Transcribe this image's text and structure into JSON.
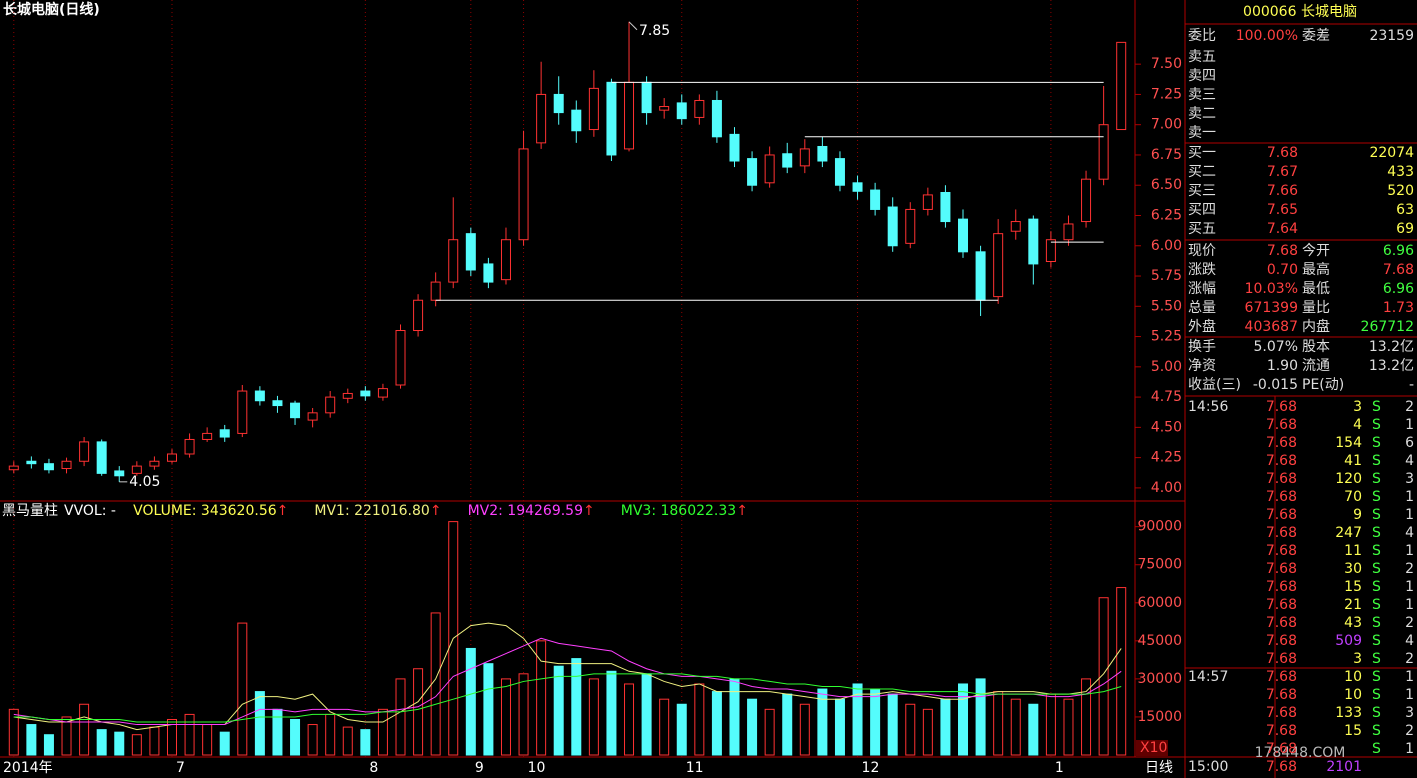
{
  "chart_data": [
    {
      "type": "candlestick",
      "title": "长城电脑(日线)",
      "period": "日线",
      "categories": [
        "2014年",
        null,
        null,
        null,
        null,
        null,
        null,
        null,
        null,
        "7",
        null,
        null,
        null,
        null,
        null,
        null,
        null,
        null,
        null,
        null,
        "8",
        null,
        null,
        null,
        null,
        null,
        "9",
        null,
        null,
        "10",
        null,
        null,
        null,
        null,
        null,
        null,
        null,
        null,
        "11",
        null,
        null,
        null,
        null,
        null,
        null,
        null,
        null,
        null,
        "12",
        null,
        null,
        null,
        null,
        null,
        null,
        null,
        null,
        null,
        null,
        "1",
        null,
        null,
        null,
        null
      ],
      "open": [
        4.15,
        4.22,
        4.2,
        4.16,
        4.22,
        4.38,
        4.14,
        4.12,
        4.18,
        4.22,
        4.28,
        4.4,
        4.48,
        4.45,
        4.8,
        4.72,
        4.7,
        4.56,
        4.62,
        4.74,
        4.8,
        4.75,
        4.85,
        5.3,
        5.55,
        5.7,
        6.1,
        5.85,
        5.72,
        6.05,
        6.85,
        7.25,
        7.12,
        6.96,
        7.35,
        6.8,
        7.35,
        7.12,
        7.18,
        7.06,
        7.2,
        6.92,
        6.72,
        6.52,
        6.76,
        6.66,
        6.82,
        6.72,
        6.52,
        6.46,
        6.32,
        6.02,
        6.3,
        6.44,
        6.22,
        5.95,
        5.58,
        6.12,
        6.22,
        5.87,
        6.05,
        6.2,
        6.55,
        6.96
      ],
      "high": [
        4.22,
        4.26,
        4.24,
        4.25,
        4.42,
        4.4,
        4.18,
        4.22,
        4.26,
        4.32,
        4.45,
        4.5,
        4.52,
        4.85,
        4.84,
        4.76,
        4.72,
        4.66,
        4.8,
        4.82,
        4.84,
        4.86,
        5.35,
        5.6,
        5.78,
        6.4,
        6.15,
        5.9,
        6.15,
        6.95,
        7.52,
        7.4,
        7.2,
        7.45,
        7.38,
        7.85,
        7.4,
        7.22,
        7.25,
        7.25,
        7.28,
        6.98,
        6.78,
        6.82,
        6.85,
        6.88,
        6.9,
        6.78,
        6.58,
        6.52,
        6.4,
        6.36,
        6.48,
        6.5,
        6.3,
        6.0,
        6.22,
        6.3,
        6.25,
        6.12,
        6.25,
        6.62,
        7.32,
        7.68
      ],
      "low": [
        4.12,
        4.16,
        4.12,
        4.12,
        4.18,
        4.1,
        4.05,
        4.1,
        4.15,
        4.2,
        4.25,
        4.38,
        4.38,
        4.42,
        4.68,
        4.62,
        4.52,
        4.5,
        4.58,
        4.7,
        4.72,
        4.72,
        4.82,
        5.25,
        5.5,
        5.65,
        5.75,
        5.65,
        5.68,
        6.0,
        6.8,
        7.0,
        6.85,
        6.9,
        6.7,
        6.78,
        7.0,
        7.05,
        7.0,
        7.0,
        6.85,
        6.65,
        6.45,
        6.48,
        6.6,
        6.6,
        6.65,
        6.45,
        6.38,
        6.25,
        5.95,
        5.98,
        6.25,
        6.15,
        5.9,
        5.42,
        5.52,
        6.05,
        5.68,
        5.82,
        6.0,
        6.15,
        6.5,
        6.96
      ],
      "close": [
        4.18,
        4.2,
        4.15,
        4.22,
        4.38,
        4.12,
        4.1,
        4.18,
        4.22,
        4.28,
        4.4,
        4.45,
        4.42,
        4.8,
        4.72,
        4.68,
        4.58,
        4.62,
        4.75,
        4.78,
        4.76,
        4.82,
        5.3,
        5.55,
        5.7,
        6.05,
        5.8,
        5.7,
        6.05,
        6.8,
        7.25,
        7.1,
        6.95,
        7.3,
        6.75,
        7.35,
        7.1,
        7.15,
        7.05,
        7.2,
        6.9,
        6.7,
        6.5,
        6.75,
        6.65,
        6.8,
        6.7,
        6.5,
        6.45,
        6.3,
        6.0,
        6.3,
        6.42,
        6.2,
        5.95,
        5.55,
        6.1,
        6.2,
        5.85,
        6.05,
        6.18,
        6.55,
        7.0,
        7.68
      ],
      "up_color": "#ff3232",
      "down_color": "#54fcfc",
      "ylim": [
        3.9,
        8.03
      ],
      "yticks": [
        {
          "value": 4,
          "label": "4.00"
        },
        {
          "value": 4.25,
          "label": "4.25"
        },
        {
          "value": 4.5,
          "label": "4.50"
        },
        {
          "value": 4.75,
          "label": "4.75"
        },
        {
          "value": 5,
          "label": "5.00"
        },
        {
          "value": 5.25,
          "label": "5.25"
        },
        {
          "value": 5.5,
          "label": "5.50"
        },
        {
          "value": 5.75,
          "label": "5.75"
        },
        {
          "value": 6,
          "label": "6.00"
        },
        {
          "value": 6.25,
          "label": "6.25"
        },
        {
          "value": 6.5,
          "label": "6.50"
        },
        {
          "value": 6.75,
          "label": "6.75"
        },
        {
          "value": 7,
          "label": "7.00"
        },
        {
          "value": 7.25,
          "label": "7.25"
        },
        {
          "value": 7.5,
          "label": "7.50"
        }
      ],
      "max_label": 7.85,
      "min_label": 4.05,
      "hlines": [
        {
          "value": 7.35,
          "from": 34,
          "to": 62
        },
        {
          "value": 6.9,
          "from": 45,
          "to": 62
        },
        {
          "value": 6.03,
          "from": 59,
          "to": 62
        },
        {
          "value": 5.55,
          "from": 24,
          "to": 56
        }
      ]
    },
    {
      "type": "bar",
      "title": "黑马量柱",
      "indicator": "VVOL: -",
      "volume_label": "VOLUME: 343620.56",
      "volume_color": "#ffff54",
      "arrow": "↑",
      "unit": "X10",
      "values": [
        18000,
        12000,
        8000,
        15000,
        20000,
        10000,
        9000,
        8000,
        11000,
        14000,
        16000,
        12000,
        9000,
        52000,
        25000,
        18000,
        14000,
        12000,
        16000,
        11000,
        10000,
        18000,
        30000,
        34000,
        56000,
        92000,
        42000,
        36000,
        30000,
        32000,
        45000,
        35000,
        38000,
        30000,
        33000,
        28000,
        32000,
        22000,
        20000,
        28000,
        25000,
        30000,
        22000,
        18000,
        24000,
        20000,
        26000,
        22000,
        28000,
        26000,
        24000,
        20000,
        18000,
        22000,
        28000,
        30000,
        25000,
        22000,
        20000,
        24000,
        22000,
        30000,
        62000,
        66000
      ],
      "series": [
        {
          "name": "MV1: 221016.80",
          "color": "#f0f080",
          "values": [
            15000,
            14000,
            13000,
            13000,
            15000,
            13000,
            12000,
            10000,
            11000,
            12000,
            12000,
            12000,
            12000,
            20000,
            23000,
            23000,
            22000,
            24000,
            17000,
            14000,
            13000,
            13000,
            17000,
            21000,
            30000,
            46000,
            51000,
            52000,
            51000,
            46000,
            37000,
            36000,
            36000,
            36000,
            36000,
            33000,
            32000,
            29000,
            27000,
            28000,
            25000,
            25000,
            25000,
            25000,
            24000,
            23000,
            22000,
            22000,
            24000,
            24000,
            25000,
            24000,
            23000,
            22000,
            22000,
            24000,
            25000,
            25000,
            25000,
            24000,
            24000,
            25000,
            32000,
            42000
          ]
        },
        {
          "name": "MV2: 194269.59",
          "color": "#ff40ff",
          "values": [
            16000,
            15000,
            14000,
            13000,
            13000,
            13000,
            13000,
            12000,
            12000,
            12000,
            12000,
            12000,
            12000,
            15000,
            18000,
            18000,
            17000,
            18000,
            18000,
            18000,
            17000,
            17000,
            18000,
            19000,
            23000,
            31000,
            34000,
            37000,
            40000,
            43000,
            46000,
            44000,
            43000,
            42000,
            41000,
            37000,
            34000,
            32000,
            31000,
            31000,
            30000,
            29000,
            27000,
            26000,
            26000,
            25000,
            24000,
            23000,
            23000,
            23000,
            24000,
            24000,
            24000,
            23000,
            23000,
            23000,
            24000,
            24000,
            24000,
            23000,
            23000,
            24000,
            28000,
            33000
          ]
        },
        {
          "name": "MV3: 186022.33",
          "color": "#30ff30",
          "values": [
            15000,
            15000,
            14000,
            14000,
            14000,
            14000,
            14000,
            13000,
            13000,
            13000,
            13000,
            13000,
            13000,
            14000,
            15000,
            15000,
            15000,
            16000,
            16000,
            16000,
            16000,
            17000,
            17000,
            18000,
            20000,
            22000,
            24000,
            26000,
            27000,
            29000,
            30000,
            31000,
            31000,
            32000,
            32000,
            32000,
            32000,
            32000,
            32000,
            31000,
            31000,
            30000,
            30000,
            29000,
            28000,
            28000,
            27000,
            27000,
            26000,
            26000,
            26000,
            25000,
            25000,
            25000,
            25000,
            24000,
            24000,
            24000,
            24000,
            24000,
            24000,
            24000,
            25000,
            27000
          ]
        }
      ],
      "ylim": [
        0,
        95000
      ],
      "yticks": [
        15000,
        30000,
        45000,
        60000,
        75000,
        90000
      ]
    }
  ],
  "panel": {
    "title": "000066 长城电脑",
    "weibi": [
      "委比",
      "100.00%",
      "委差",
      "23159"
    ],
    "sells": [
      "卖五",
      "卖四",
      "卖三",
      "卖二",
      "卖一"
    ],
    "buys": [
      [
        "买一",
        "7.68",
        "22074"
      ],
      [
        "买二",
        "7.67",
        "433"
      ],
      [
        "买三",
        "7.66",
        "520"
      ],
      [
        "买四",
        "7.65",
        "63"
      ],
      [
        "买五",
        "7.64",
        "69"
      ]
    ],
    "stats": [
      [
        "现价",
        "7.68",
        "今开",
        "6.96"
      ],
      [
        "涨跌",
        "0.70",
        "最高",
        "7.68"
      ],
      [
        "涨幅",
        "10.03%",
        "最低",
        "6.96"
      ],
      [
        "总量",
        "671399",
        "量比",
        "1.73"
      ],
      [
        "外盘",
        "403687",
        "内盘",
        "267712"
      ]
    ],
    "stats_value2_colors": [
      "#40ff40",
      "#ff4040",
      "#40ff40",
      "#ff4040",
      "#40ff40"
    ],
    "info": [
      [
        "换手",
        "5.07%",
        "股本",
        "13.2亿"
      ],
      [
        "净资",
        "1.90",
        "流通",
        "13.2亿"
      ],
      [
        "收益(三)",
        "-0.015",
        "PE(动)",
        "-"
      ]
    ],
    "ticks": [
      {
        "time": "14:56",
        "highlight": [
          13
        ],
        "rows": [
          [
            "7.68",
            "3",
            "S",
            "2"
          ],
          [
            "7.68",
            "4",
            "S",
            "1"
          ],
          [
            "7.68",
            "154",
            "S",
            "6"
          ],
          [
            "7.68",
            "41",
            "S",
            "4"
          ],
          [
            "7.68",
            "120",
            "S",
            "3"
          ],
          [
            "7.68",
            "70",
            "S",
            "1"
          ],
          [
            "7.68",
            "9",
            "S",
            "1"
          ],
          [
            "7.68",
            "247",
            "S",
            "4"
          ],
          [
            "7.68",
            "11",
            "S",
            "1"
          ],
          [
            "7.68",
            "30",
            "S",
            "2"
          ],
          [
            "7.68",
            "15",
            "S",
            "1"
          ],
          [
            "7.68",
            "21",
            "S",
            "1"
          ],
          [
            "7.68",
            "43",
            "S",
            "2"
          ],
          [
            "7.68",
            "509",
            "S",
            "4"
          ],
          [
            "7.68",
            "3",
            "S",
            "2"
          ]
        ]
      },
      {
        "time": "14:57",
        "highlight": [],
        "rows": [
          [
            "7.68",
            "10",
            "S",
            "1"
          ],
          [
            "7.68",
            "10",
            "S",
            "1"
          ],
          [
            "7.68",
            "133",
            "S",
            "3"
          ],
          [
            "7.68",
            "15",
            "S",
            "2"
          ],
          [
            "7.68",
            null,
            "S",
            "1"
          ]
        ]
      },
      {
        "time": "15:00",
        "highlight": [
          0
        ],
        "rows": [
          [
            "7.68",
            "2101",
            null,
            null
          ]
        ]
      }
    ]
  },
  "watermark": "178448.COM"
}
